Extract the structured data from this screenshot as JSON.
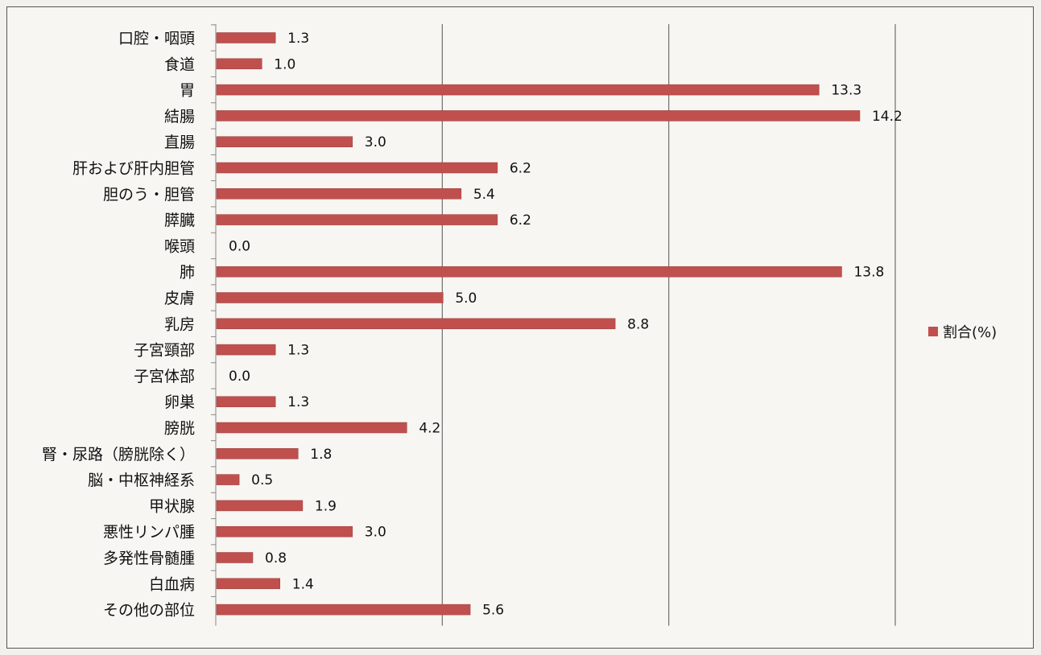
{
  "chart_data": {
    "type": "bar",
    "orientation": "horizontal",
    "categories": [
      "口腔・咽頭",
      "食道",
      "胃",
      "結腸",
      "直腸",
      "肝および肝内胆管",
      "胆のう・胆管",
      "膵臓",
      "喉頭",
      "肺",
      "皮膚",
      "乳房",
      "子宮頸部",
      "子宮体部",
      "卵巣",
      "膀胱",
      "腎・尿路（膀胱除く）",
      "脳・中枢神経系",
      "甲状腺",
      "悪性リンパ腫",
      "多発性骨髄腫",
      "白血病",
      "その他の部位"
    ],
    "series": [
      {
        "name": "割合(%)",
        "color": "#c0504d",
        "values": [
          1.3,
          1.0,
          13.3,
          14.2,
          3.0,
          6.2,
          5.4,
          6.2,
          0.0,
          13.8,
          5.0,
          8.8,
          1.3,
          0.0,
          1.3,
          4.2,
          1.8,
          0.5,
          1.9,
          3.0,
          0.8,
          1.4,
          5.6
        ],
        "value_labels": [
          "1.3",
          "1.0",
          "13.3",
          "14.2",
          "3.0",
          "6.2",
          "5.4",
          "6.2",
          "0.0",
          "13.8",
          "5.0",
          "8.8",
          "1.3",
          "0.0",
          "1.3",
          "4.2",
          "1.8",
          "0.5",
          "1.9",
          "3.0",
          "0.8",
          "1.4",
          "5.6"
        ]
      }
    ],
    "xlim": [
      0,
      15
    ],
    "grid": true,
    "legend_position": "right",
    "title": "",
    "xlabel": "",
    "ylabel": ""
  }
}
